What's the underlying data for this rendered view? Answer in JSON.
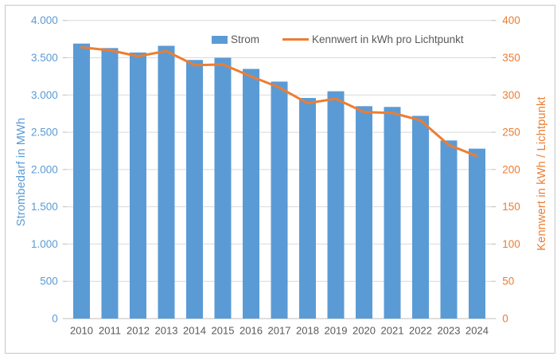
{
  "chart_data": {
    "type": "bar",
    "subtype": "bar+line combo, dual y-axes",
    "categories": [
      "2010",
      "2011",
      "2012",
      "2013",
      "2014",
      "2015",
      "2016",
      "2017",
      "2018",
      "2019",
      "2020",
      "2021",
      "2022",
      "2023",
      "2024"
    ],
    "series": [
      {
        "name": "Strom",
        "type": "bar",
        "axis": "left",
        "color": "#5B9BD5",
        "values": [
          3690,
          3630,
          3570,
          3660,
          3470,
          3500,
          3350,
          3180,
          2960,
          3050,
          2850,
          2840,
          2720,
          2390,
          2280
        ]
      },
      {
        "name": "Kennwert in kWh pro Lichtpunkt",
        "type": "line",
        "axis": "right",
        "color": "#ED7D31",
        "values": [
          364,
          360,
          352,
          359,
          340,
          341,
          325,
          310,
          289,
          295,
          277,
          276,
          266,
          233,
          218
        ]
      }
    ],
    "left_axis": {
      "title": "Strombedarf in MWh",
      "min": 0,
      "max": 4000,
      "step": 500,
      "tick_labels": [
        "0",
        "500",
        "1.000",
        "1.500",
        "2.000",
        "2.500",
        "3.000",
        "3.500",
        "4.000"
      ],
      "color": "#5B9BD5"
    },
    "right_axis": {
      "title": "Kennwert in kWh / Lichtpunkt",
      "min": 0,
      "max": 400,
      "step": 50,
      "tick_labels": [
        "0",
        "50",
        "100",
        "150",
        "200",
        "250",
        "300",
        "350",
        "400"
      ],
      "color": "#ED7D31"
    },
    "legend": {
      "position": "top",
      "items": [
        {
          "label": "Strom",
          "marker": "rect",
          "color": "#5B9BD5"
        },
        {
          "label": "Kennwert in kWh pro Lichtpunkt",
          "marker": "line",
          "color": "#ED7D31"
        }
      ]
    },
    "grid": true,
    "style": {
      "gridline_color": "#D9D9D9",
      "axis_line_color": "#BFBFBF",
      "frame_color": "#C9C7C5",
      "x_label_color": "#595959",
      "background": "#FFFFFF"
    }
  }
}
